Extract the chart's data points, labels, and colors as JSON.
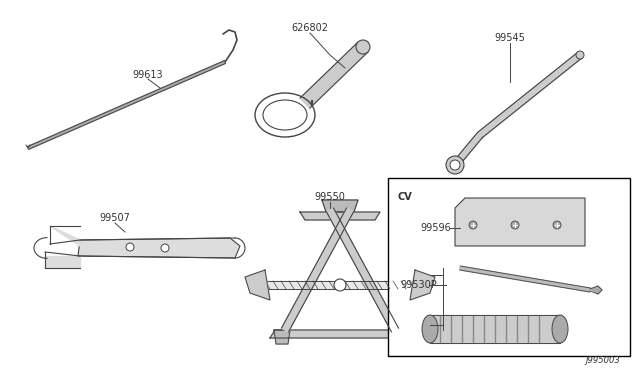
{
  "background_color": "#ffffff",
  "line_color": "#444444",
  "text_color": "#333333",
  "diagram_code": "J995003",
  "cv_label": "CV"
}
